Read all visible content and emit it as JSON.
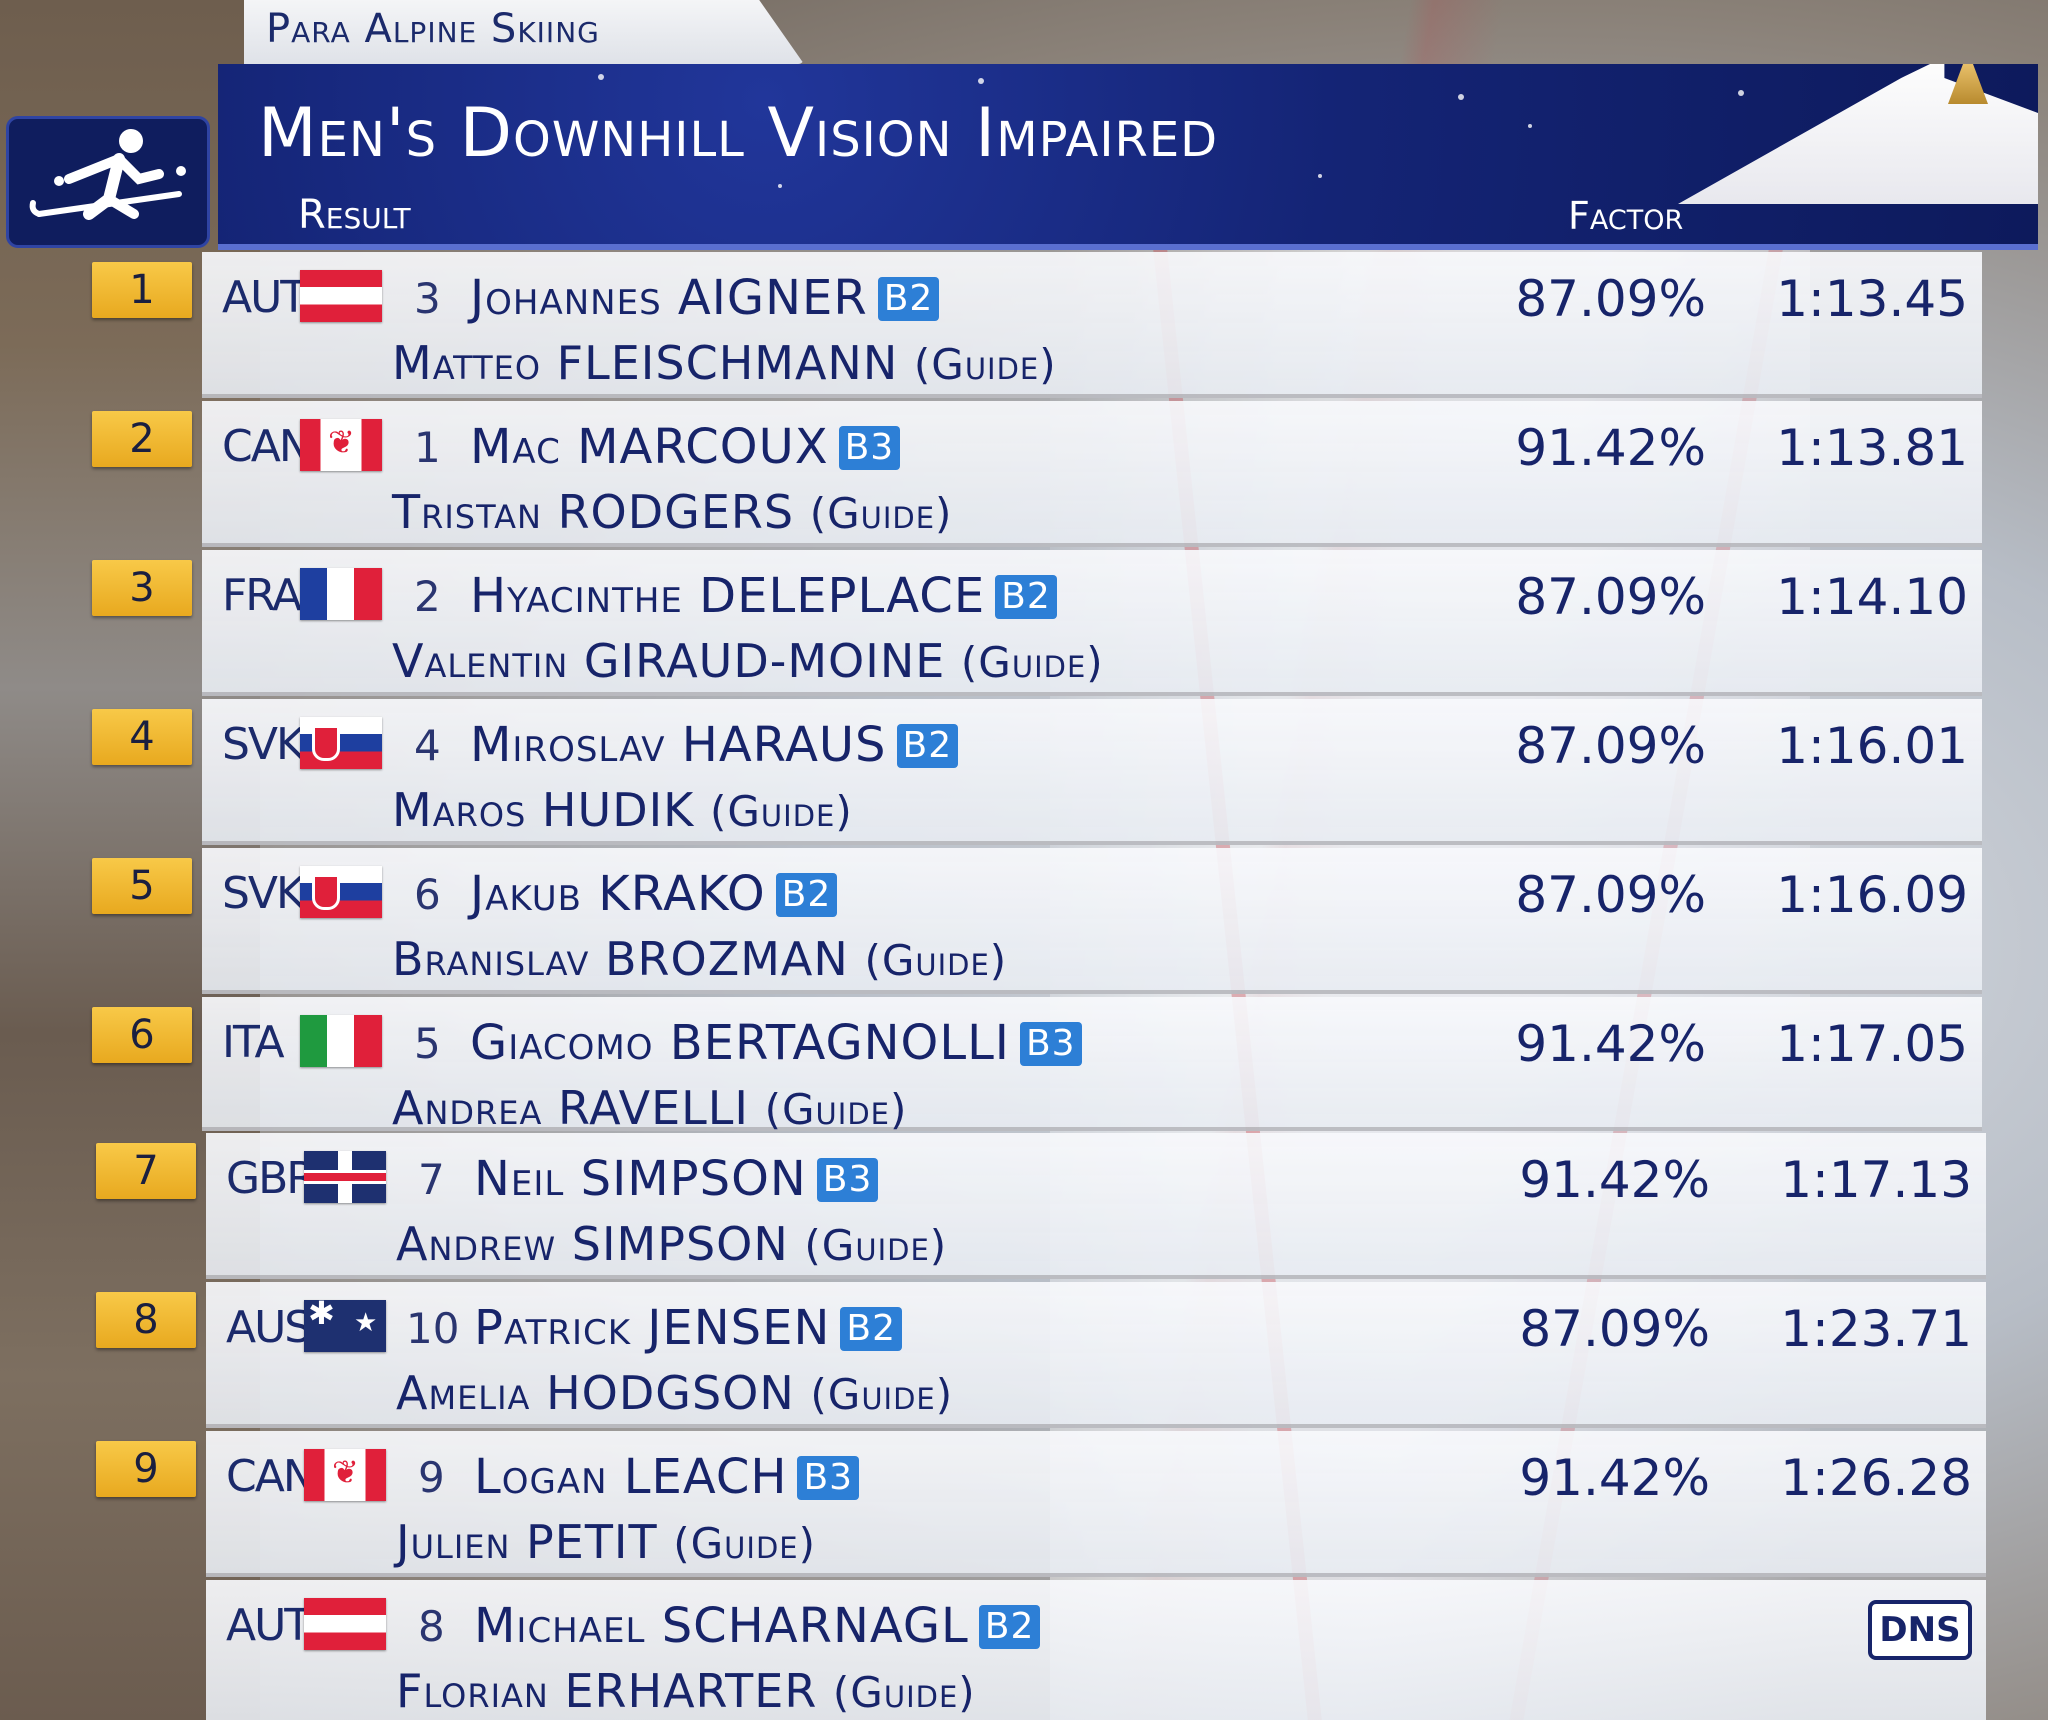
{
  "header": {
    "sport": "Para Alpine Skiing",
    "event": "Men's Downhill Vision Impaired",
    "result_label": "Result",
    "factor_label": "Factor"
  },
  "icons": {
    "sport": "para-alpine-skier-icon",
    "logo": "paralympic-agitos-icon"
  },
  "colors": {
    "header_blue": "#142475",
    "rank_badge": "#f0b830",
    "class_badge": "#2d7fd6",
    "text_navy": "#17246a"
  },
  "results": [
    {
      "rank": "1",
      "noc": "AUT",
      "bib": "3",
      "athlete": "Johannes AIGNER",
      "class": "B2",
      "guide": "Matteo FLEISCHMANN",
      "guide_label": "(Guide)",
      "factor": "87.09%",
      "time": "1:13.45"
    },
    {
      "rank": "2",
      "noc": "CAN",
      "bib": "1",
      "athlete": "Mac MARCOUX",
      "class": "B3",
      "guide": "Tristan RODGERS",
      "guide_label": "(Guide)",
      "factor": "91.42%",
      "time": "1:13.81"
    },
    {
      "rank": "3",
      "noc": "FRA",
      "bib": "2",
      "athlete": "Hyacinthe DELEPLACE",
      "class": "B2",
      "guide": "Valentin GIRAUD-MOINE",
      "guide_label": "(Guide)",
      "factor": "87.09%",
      "time": "1:14.10"
    },
    {
      "rank": "4",
      "noc": "SVK",
      "bib": "4",
      "athlete": "Miroslav HARAUS",
      "class": "B2",
      "guide": "Maros HUDIK",
      "guide_label": "(Guide)",
      "factor": "87.09%",
      "time": "1:16.01"
    },
    {
      "rank": "5",
      "noc": "SVK",
      "bib": "6",
      "athlete": "Jakub KRAKO",
      "class": "B2",
      "guide": "Branislav BROZMAN",
      "guide_label": "(Guide)",
      "factor": "87.09%",
      "time": "1:16.09"
    },
    {
      "rank": "6",
      "noc": "ITA",
      "bib": "5",
      "athlete": "Giacomo BERTAGNOLLI",
      "class": "B3",
      "guide": "Andrea RAVELLI",
      "guide_label": "(Guide)",
      "factor": "91.42%",
      "time": "1:17.05"
    },
    {
      "rank": "7",
      "noc": "GBR",
      "bib": "7",
      "athlete": "Neil SIMPSON",
      "class": "B3",
      "guide": "Andrew SIMPSON",
      "guide_label": "(Guide)",
      "factor": "91.42%",
      "time": "1:17.13"
    },
    {
      "rank": "8",
      "noc": "AUS",
      "bib": "10",
      "athlete": "Patrick JENSEN",
      "class": "B2",
      "guide": "Amelia HODGSON",
      "guide_label": "(Guide)",
      "factor": "87.09%",
      "time": "1:23.71"
    },
    {
      "rank": "9",
      "noc": "CAN",
      "bib": "9",
      "athlete": "Logan LEACH",
      "class": "B3",
      "guide": "Julien PETIT",
      "guide_label": "(Guide)",
      "factor": "91.42%",
      "time": "1:26.28"
    },
    {
      "rank": "",
      "noc": "AUT",
      "bib": "8",
      "athlete": "Michael SCHARNAGL",
      "class": "B2",
      "guide": "Florian ERHARTER",
      "guide_label": "(Guide)",
      "factor": "",
      "time": "",
      "status": "DNS"
    }
  ]
}
